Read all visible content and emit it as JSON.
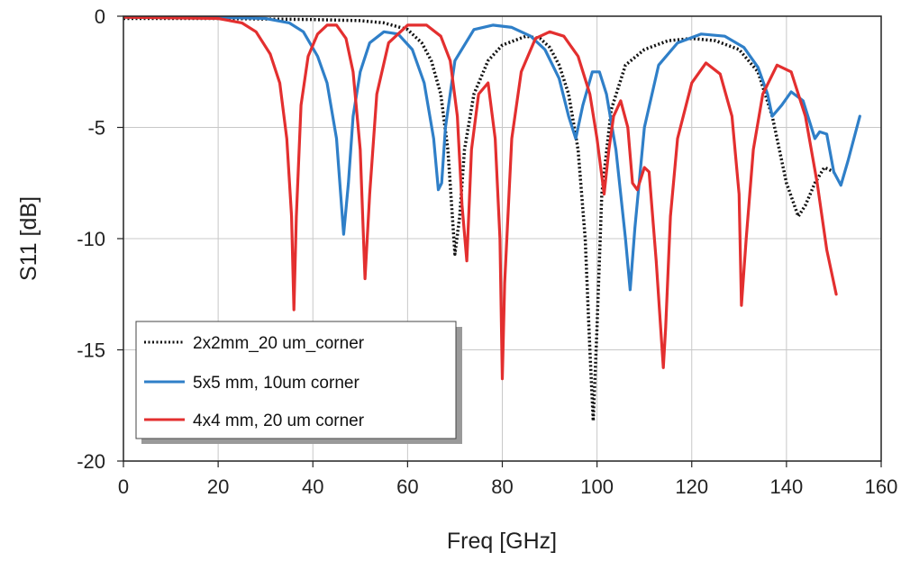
{
  "chart_data": {
    "type": "line",
    "title": "",
    "xlabel": "Freq [GHz]",
    "ylabel": "S11 [dB]",
    "xlim": [
      0,
      160
    ],
    "ylim": [
      -20,
      0
    ],
    "xticks": [
      0,
      20,
      40,
      60,
      80,
      100,
      120,
      140,
      160
    ],
    "yticks": [
      0,
      -5,
      -10,
      -15,
      -20
    ],
    "xtick_labels": [
      "0",
      "20",
      "40",
      "60",
      "80",
      "100",
      "120",
      "140",
      "160"
    ],
    "ytick_labels": [
      "0",
      "-5",
      "-10",
      "-15",
      "-20"
    ],
    "grid": true,
    "legend_position": "bottom-left",
    "series": [
      {
        "name": "2x2mm_20 um_corner",
        "color": "#111111",
        "style": "dotted",
        "x": [
          0,
          20,
          40,
          50,
          55,
          60,
          63,
          65,
          67,
          68.5,
          70,
          71,
          72,
          74,
          77,
          80,
          85,
          88,
          90,
          92,
          94,
          96,
          97.5,
          98.5,
          99.2,
          100,
          101,
          103,
          106,
          110,
          115,
          120,
          125,
          130,
          134,
          137,
          140,
          142.5,
          144,
          146,
          148,
          149,
          150
        ],
        "y": [
          -0.1,
          -0.1,
          -0.15,
          -0.2,
          -0.3,
          -0.6,
          -1.2,
          -2.0,
          -3.5,
          -6.0,
          -10.7,
          -9.0,
          -6.0,
          -3.5,
          -2.0,
          -1.3,
          -0.9,
          -1.0,
          -1.4,
          -2.2,
          -3.5,
          -6.0,
          -10.0,
          -15.0,
          -18.2,
          -14.0,
          -8.0,
          -4.2,
          -2.2,
          -1.5,
          -1.1,
          -1.0,
          -1.1,
          -1.5,
          -2.5,
          -4.5,
          -7.5,
          -9.0,
          -8.5,
          -7.5,
          -6.8,
          -6.9,
          -7.0
        ]
      },
      {
        "name": "5x5 mm, 10um corner",
        "color": "#2f7fc8",
        "style": "solid",
        "x": [
          0,
          20,
          30,
          35,
          38,
          41,
          43,
          45,
          46.5,
          47.5,
          48.5,
          50,
          52,
          55,
          58,
          61,
          63.5,
          65.5,
          66.5,
          67.2,
          68,
          70,
          74,
          78,
          82,
          86,
          89,
          92,
          94,
          95.5,
          97,
          99,
          100.5,
          102,
          104,
          106,
          107,
          108,
          110,
          113,
          117,
          122,
          127,
          131,
          134,
          136,
          137,
          139,
          141,
          143.5,
          146,
          147,
          148.5,
          150,
          151.5,
          153,
          155.5
        ],
        "y": [
          -0.05,
          -0.05,
          -0.1,
          -0.3,
          -0.7,
          -1.8,
          -3.0,
          -5.5,
          -9.8,
          -7.5,
          -4.5,
          -2.5,
          -1.2,
          -0.7,
          -0.8,
          -1.5,
          -3.0,
          -5.5,
          -7.8,
          -7.5,
          -5.0,
          -2.0,
          -0.6,
          -0.4,
          -0.5,
          -0.9,
          -1.5,
          -2.8,
          -4.5,
          -5.5,
          -4.0,
          -2.5,
          -2.5,
          -3.5,
          -6.0,
          -10.0,
          -12.3,
          -9.5,
          -5.0,
          -2.2,
          -1.2,
          -0.8,
          -0.9,
          -1.4,
          -2.3,
          -3.5,
          -4.5,
          -4.0,
          -3.4,
          -3.8,
          -5.5,
          -5.2,
          -5.3,
          -7.0,
          -7.6,
          -6.5,
          -4.5
        ]
      },
      {
        "name": "4x4 mm, 20 um corner",
        "color": "#e32f2f",
        "style": "solid",
        "x": [
          0,
          20,
          25,
          28,
          31,
          33,
          34.5,
          35.5,
          36,
          36.5,
          37.5,
          39,
          41,
          43,
          45,
          47,
          48.5,
          50,
          51,
          52,
          53.5,
          56,
          60,
          64,
          67,
          69,
          70.5,
          71.5,
          72.5,
          73.5,
          75,
          77,
          78.5,
          79.5,
          80,
          80.5,
          82,
          84,
          87,
          90,
          93,
          96,
          98.5,
          100,
          101.5,
          102.5,
          103.5,
          105,
          106.5,
          107.5,
          108.5,
          110,
          111,
          112.5,
          114,
          114.5,
          115.5,
          117,
          120,
          123,
          126,
          128.5,
          130,
          130.5,
          131.5,
          133,
          135,
          138,
          141,
          144,
          146.5,
          148.5,
          150.5
        ],
        "y": [
          -0.05,
          -0.1,
          -0.3,
          -0.7,
          -1.7,
          -3.0,
          -5.5,
          -9.0,
          -13.2,
          -9.0,
          -4.0,
          -1.8,
          -0.8,
          -0.4,
          -0.4,
          -1.0,
          -2.5,
          -6.0,
          -11.8,
          -8.0,
          -3.5,
          -1.2,
          -0.4,
          -0.4,
          -0.9,
          -2.0,
          -4.5,
          -8.5,
          -11.0,
          -6.0,
          -3.5,
          -3.0,
          -5.5,
          -10.0,
          -16.3,
          -12.0,
          -5.5,
          -2.5,
          -1.0,
          -0.7,
          -0.9,
          -1.8,
          -3.5,
          -5.5,
          -8.0,
          -6.0,
          -4.5,
          -3.8,
          -5.0,
          -7.5,
          -7.8,
          -6.8,
          -7.0,
          -11.0,
          -15.8,
          -14.0,
          -9.0,
          -5.5,
          -3.0,
          -2.1,
          -2.6,
          -4.5,
          -8.0,
          -13.0,
          -10.0,
          -6.0,
          -3.5,
          -2.2,
          -2.5,
          -4.5,
          -7.5,
          -10.5,
          -12.5
        ]
      }
    ]
  }
}
